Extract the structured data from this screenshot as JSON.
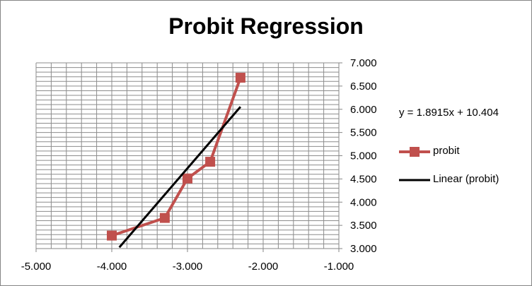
{
  "chart_data": {
    "type": "line",
    "title": "Probit Regression",
    "xlim": [
      -5.0,
      -1.0
    ],
    "ylim": [
      3.0,
      7.0
    ],
    "x_ticks": [
      "-5.000",
      "-4.000",
      "-3.000",
      "-2.000",
      "-1.000"
    ],
    "y_ticks": [
      "3.000",
      "3.500",
      "4.000",
      "4.500",
      "5.000",
      "5.500",
      "6.000",
      "6.500",
      "7.000"
    ],
    "y_axis_side": "right",
    "grid": true,
    "legend_placement": "right",
    "series": [
      {
        "name": "probit",
        "color": "#C0504D",
        "marker": "square",
        "x": [
          -4.0,
          -3.3,
          -3.0,
          -2.7,
          -2.3
        ],
        "y": [
          3.28,
          3.66,
          4.51,
          4.87,
          6.68
        ]
      }
    ],
    "trendline": {
      "name": "Linear (probit)",
      "color": "#000000",
      "slope": 1.8915,
      "intercept": 10.404,
      "x_range": [
        -3.9,
        -2.3
      ],
      "equation": "y = 1.8915x + 10.404"
    }
  }
}
